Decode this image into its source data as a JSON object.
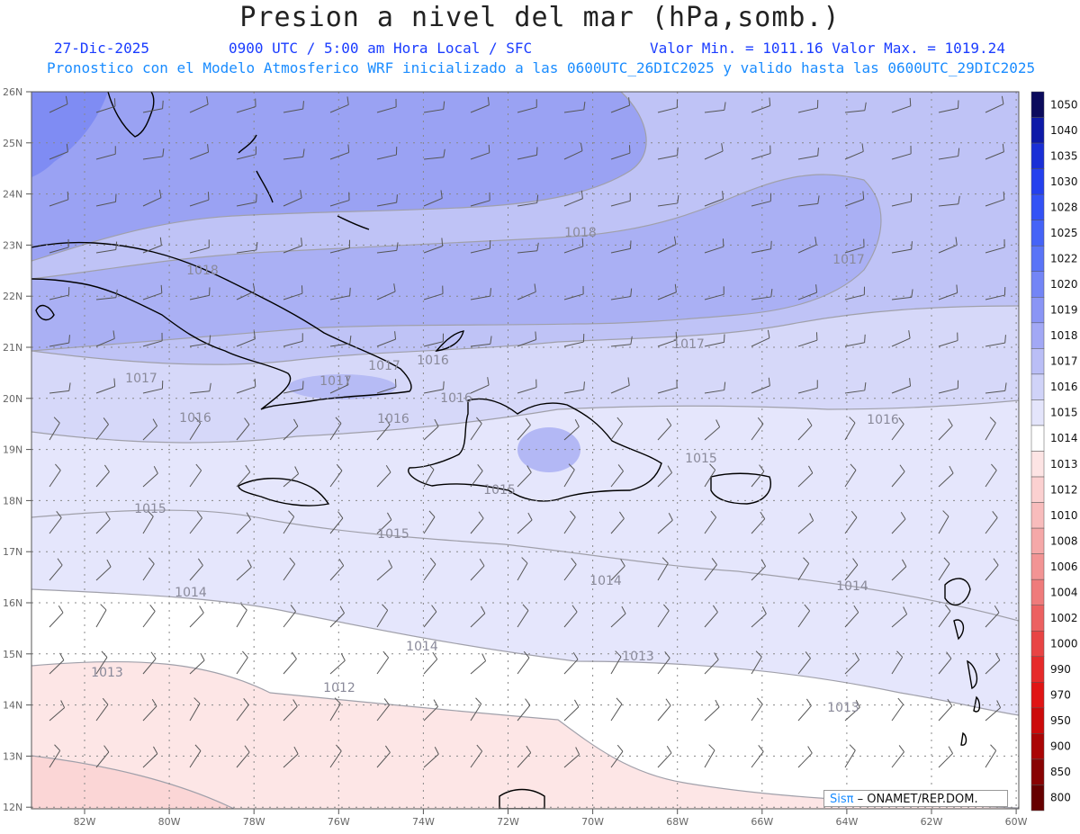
{
  "title": "Presion a nivel del mar (hPa,somb.)",
  "date": "27-Dic-2025",
  "time_info": "0900 UTC / 5:00 am Hora Local / SFC",
  "min_max": "Valor Min. = 1011.16  Valor Max. = 1019.24",
  "model_info": "Pronostico con el Modelo Atmosferico WRF inicializado a las 0600UTC_26DIC2025 y valido hasta las  0600UTC_29DIC2025",
  "lat_labels": [
    "26N",
    "25N",
    "24N",
    "23N",
    "22N",
    "21N",
    "20N",
    "19N",
    "18N",
    "17N",
    "16N",
    "15N",
    "14N",
    "13N",
    "12N"
  ],
  "lon_labels": [
    "82W",
    "80W",
    "78W",
    "76W",
    "74W",
    "72W",
    "70W",
    "68W",
    "66W",
    "64W",
    "62W",
    "60W"
  ],
  "contour_labels": [
    {
      "text": "1018"
    },
    {
      "text": "1018"
    },
    {
      "text": "1017"
    },
    {
      "text": "1017"
    },
    {
      "text": "1017"
    },
    {
      "text": "1017"
    },
    {
      "text": "1017"
    },
    {
      "text": "1016"
    },
    {
      "text": "1016"
    },
    {
      "text": "1016"
    },
    {
      "text": "1016"
    },
    {
      "text": "1016"
    },
    {
      "text": "1015"
    },
    {
      "text": "1015"
    },
    {
      "text": "1015"
    },
    {
      "text": "1015"
    },
    {
      "text": "1014"
    },
    {
      "text": "1014"
    },
    {
      "text": "1014"
    },
    {
      "text": "1014"
    },
    {
      "text": "1013"
    },
    {
      "text": "1013"
    },
    {
      "text": "1013"
    },
    {
      "text": "1012"
    }
  ],
  "colorbar": {
    "levels": [
      "1050",
      "1040",
      "1035",
      "1030",
      "1028",
      "1025",
      "1022",
      "1020",
      "1019",
      "1018",
      "1017",
      "1016",
      "1015",
      "1014",
      "1013",
      "1012",
      "1010",
      "1008",
      "1006",
      "1004",
      "1002",
      "1000",
      "990",
      "970",
      "950",
      "900",
      "850",
      "800"
    ],
    "colors": [
      "#0b0b5c",
      "#0d1aa8",
      "#1a2fd6",
      "#2440ee",
      "#3352f5",
      "#4563f7",
      "#5a74f7",
      "#7385f6",
      "#8a95f5",
      "#a2a8f5",
      "#babef6",
      "#d0d3f8",
      "#e4e5fb",
      "#ffffff",
      "#fde4e4",
      "#fbd0d0",
      "#f8bcbc",
      "#f5a8a8",
      "#f29494",
      "#ef7b7b",
      "#ec6161",
      "#e84444",
      "#e62a2a",
      "#e01515",
      "#cc0a0a",
      "#aa0505",
      "#880303",
      "#660000"
    ]
  },
  "credit": {
    "brand": "Sis",
    "pi": "π",
    "org": " – ONAMET/REP.DOM."
  }
}
